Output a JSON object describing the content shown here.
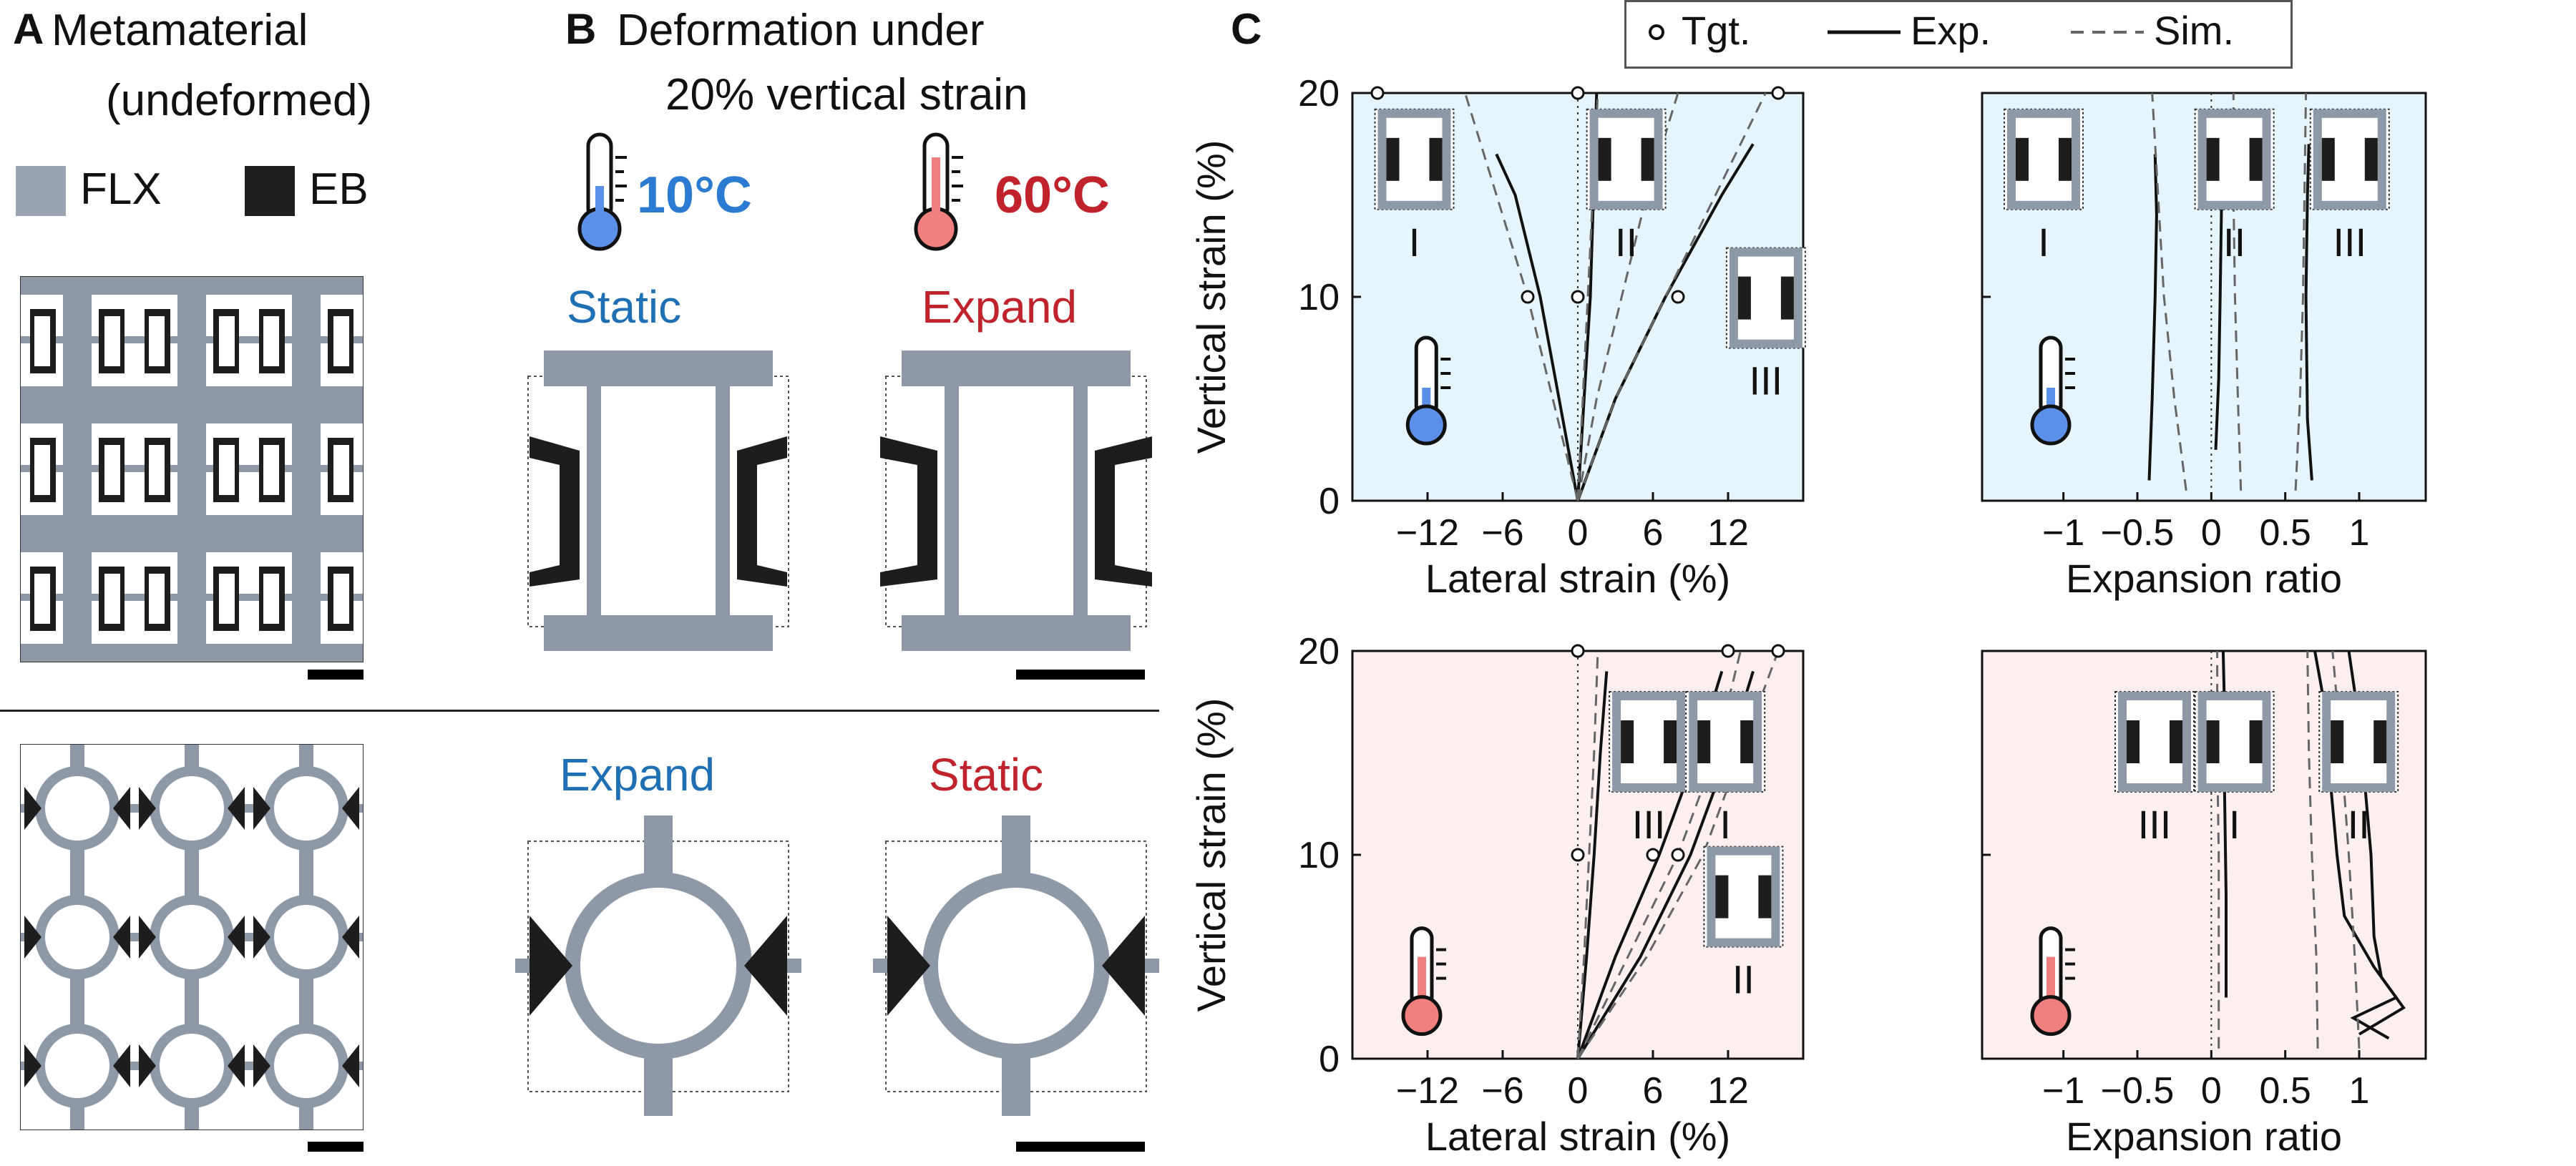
{
  "panel_a": {
    "letter": "A",
    "title_line1": "Metamaterial",
    "title_line2": "(undeformed)",
    "legend": [
      {
        "label": "FLX",
        "color": "#9aa5b3"
      },
      {
        "label": "EB",
        "color": "#1f1f1f"
      }
    ]
  },
  "panel_b": {
    "letter": "B",
    "title_line1": "Deformation under",
    "title_line2": "20% vertical strain",
    "temp_cold": "10°C",
    "temp_hot": "60°C",
    "top_row": [
      "Static",
      "Expand"
    ],
    "bottom_row": [
      "Expand",
      "Static"
    ]
  },
  "panel_c": {
    "letter": "C",
    "legend": [
      {
        "label": "Tgt.",
        "style": "circle"
      },
      {
        "label": "Exp.",
        "style": "solid"
      },
      {
        "label": "Sim.",
        "style": "dashed"
      }
    ],
    "colors": {
      "cold_bg": "#e6f4fb",
      "hot_bg": "#fcefef"
    }
  },
  "chart_data": [
    {
      "type": "line",
      "id": "cold-lateral",
      "xlabel": "Lateral strain (%)",
      "ylabel": "Vertical strain (%)",
      "xlim": [
        -18,
        18
      ],
      "ylim": [
        0,
        20
      ],
      "xticks": [
        "-12",
        "-6",
        "0",
        "6",
        "12"
      ],
      "yticks": [
        "0",
        "10",
        "20"
      ],
      "targets": [
        [
          -16,
          20
        ],
        [
          -4,
          10
        ],
        [
          0,
          20
        ],
        [
          0,
          10
        ],
        [
          8,
          10
        ],
        [
          16,
          20
        ]
      ],
      "series": [
        {
          "style": "solid",
          "points": [
            [
              0,
              0
            ],
            [
              -1.5,
              5
            ],
            [
              -3,
              10
            ],
            [
              -5,
              15
            ],
            [
              -6.5,
              17
            ]
          ]
        },
        {
          "style": "solid",
          "points": [
            [
              0,
              0
            ],
            [
              0.5,
              5
            ],
            [
              1,
              10
            ],
            [
              1.5,
              20
            ]
          ]
        },
        {
          "style": "solid",
          "points": [
            [
              0,
              0
            ],
            [
              3,
              5
            ],
            [
              7,
              10
            ],
            [
              11.5,
              15
            ],
            [
              14,
              17.5
            ]
          ]
        },
        {
          "style": "dashed",
          "points": [
            [
              0,
              0
            ],
            [
              -2,
              5
            ],
            [
              -4,
              10
            ],
            [
              -6.5,
              15
            ],
            [
              -9,
              20
            ]
          ]
        },
        {
          "style": "dashed",
          "points": [
            [
              0,
              0
            ],
            [
              0.4,
              5
            ],
            [
              0.8,
              10
            ],
            [
              1.2,
              15
            ],
            [
              1.6,
              20
            ]
          ]
        },
        {
          "style": "dashed",
          "points": [
            [
              0,
              0
            ],
            [
              1.5,
              5
            ],
            [
              3.5,
              10
            ],
            [
              5.5,
              15
            ],
            [
              8,
              20
            ]
          ]
        },
        {
          "style": "dashed",
          "points": [
            [
              0,
              0
            ],
            [
              3,
              5
            ],
            [
              7,
              10
            ],
            [
              11,
              15
            ],
            [
              15,
              20
            ]
          ]
        }
      ],
      "insets": [
        "I",
        "II",
        "III"
      ]
    },
    {
      "type": "line",
      "id": "cold-expansion",
      "xlabel": "Expansion ratio",
      "ylabel": "",
      "xlim": [
        -1.55,
        1.45
      ],
      "ylim": [
        0,
        20
      ],
      "xticks": [
        "-1",
        "-0.5",
        "0",
        "0.5",
        "1"
      ],
      "yticks": [
        "0",
        "10",
        "20"
      ],
      "series": [
        {
          "style": "solid",
          "points": [
            [
              -0.42,
              1
            ],
            [
              -0.4,
              5
            ],
            [
              -0.38,
              10
            ],
            [
              -0.37,
              14
            ],
            [
              -0.38,
              17
            ]
          ]
        },
        {
          "style": "solid",
          "points": [
            [
              0.03,
              2.5
            ],
            [
              0.05,
              6
            ],
            [
              0.06,
              10
            ],
            [
              0.07,
              15
            ],
            [
              0.08,
              18
            ]
          ]
        },
        {
          "style": "solid",
          "points": [
            [
              0.68,
              1
            ],
            [
              0.65,
              4
            ],
            [
              0.64,
              10
            ],
            [
              0.65,
              15
            ],
            [
              0.66,
              17.5
            ]
          ]
        },
        {
          "style": "dashed",
          "points": [
            [
              -0.17,
              0.5
            ],
            [
              -0.25,
              5
            ],
            [
              -0.32,
              10
            ],
            [
              -0.36,
              15
            ],
            [
              -0.4,
              20
            ]
          ]
        },
        {
          "style": "dashed",
          "points": [
            [
              0.2,
              0.5
            ],
            [
              0.18,
              5
            ],
            [
              0.16,
              10
            ],
            [
              0.15,
              15
            ],
            [
              0.15,
              20
            ]
          ]
        },
        {
          "style": "dashed",
          "points": [
            [
              0.57,
              0.5
            ],
            [
              0.6,
              5
            ],
            [
              0.62,
              10
            ],
            [
              0.63,
              15
            ],
            [
              0.64,
              20
            ]
          ]
        }
      ],
      "insets": [
        "I",
        "II",
        "III"
      ]
    },
    {
      "type": "line",
      "id": "hot-lateral",
      "xlabel": "Lateral strain (%)",
      "ylabel": "Vertical strain (%)",
      "xlim": [
        -18,
        18
      ],
      "ylim": [
        0,
        20
      ],
      "xticks": [
        "-12",
        "-6",
        "0",
        "6",
        "12"
      ],
      "yticks": [
        "0",
        "10",
        "20"
      ],
      "targets": [
        [
          0,
          20
        ],
        [
          0,
          10
        ],
        [
          6,
          10
        ],
        [
          8,
          10
        ],
        [
          12,
          20
        ],
        [
          16,
          20
        ]
      ],
      "series": [
        {
          "style": "solid",
          "points": [
            [
              0,
              0
            ],
            [
              0.7,
              5
            ],
            [
              1.3,
              10
            ],
            [
              1.8,
              15
            ],
            [
              2.3,
              19
            ]
          ]
        },
        {
          "style": "solid",
          "points": [
            [
              0,
              0
            ],
            [
              3,
              5
            ],
            [
              6.5,
              10
            ],
            [
              9.5,
              15
            ],
            [
              11.5,
              19
            ]
          ]
        },
        {
          "style": "solid",
          "points": [
            [
              0,
              0
            ],
            [
              5,
              5
            ],
            [
              9,
              10
            ],
            [
              12,
              15
            ],
            [
              14,
              19
            ]
          ]
        },
        {
          "style": "dashed",
          "points": [
            [
              0,
              0
            ],
            [
              0.5,
              5
            ],
            [
              0.9,
              10
            ],
            [
              1.3,
              15
            ],
            [
              1.6,
              20
            ]
          ]
        },
        {
          "style": "dashed",
          "points": [
            [
              0,
              0
            ],
            [
              4,
              5
            ],
            [
              8,
              10
            ],
            [
              11,
              15
            ],
            [
              13,
              20
            ]
          ]
        },
        {
          "style": "dashed",
          "points": [
            [
              0,
              0
            ],
            [
              5.5,
              5
            ],
            [
              10,
              10
            ],
            [
              13,
              15
            ],
            [
              16,
              20
            ]
          ]
        }
      ],
      "insets": [
        "III",
        "I",
        "II"
      ]
    },
    {
      "type": "line",
      "id": "hot-expansion",
      "xlabel": "Expansion ratio",
      "ylabel": "",
      "xlim": [
        -1.55,
        1.45
      ],
      "ylim": [
        0,
        20
      ],
      "xticks": [
        "-1",
        "-0.5",
        "0",
        "0.5",
        "1"
      ],
      "yticks": [
        "0",
        "10",
        "20"
      ],
      "series": [
        {
          "style": "solid",
          "points": [
            [
              0.1,
              3
            ],
            [
              0.1,
              8
            ],
            [
              0.09,
              13
            ],
            [
              0.09,
              17
            ],
            [
              0.08,
              20
            ]
          ]
        },
        {
          "style": "solid",
          "points": [
            [
              1.2,
              1
            ],
            [
              0.96,
              2
            ],
            [
              1.25,
              3
            ],
            [
              1.1,
              4.5
            ],
            [
              0.9,
              7
            ],
            [
              0.85,
              10
            ],
            [
              0.8,
              14
            ],
            [
              0.75,
              18
            ],
            [
              0.7,
              20
            ]
          ]
        },
        {
          "style": "solid",
          "points": [
            [
              1.0,
              1.2
            ],
            [
              1.3,
              2.5
            ],
            [
              1.15,
              4
            ],
            [
              1.1,
              6
            ],
            [
              1.08,
              10
            ],
            [
              1.02,
              15
            ],
            [
              0.97,
              18
            ],
            [
              0.93,
              20
            ]
          ]
        },
        {
          "style": "dashed",
          "points": [
            [
              0.05,
              0.5
            ],
            [
              0.05,
              5
            ],
            [
              0.05,
              10
            ],
            [
              0.04,
              15
            ],
            [
              0.04,
              20
            ]
          ]
        },
        {
          "style": "dashed",
          "points": [
            [
              0.72,
              0.5
            ],
            [
              0.71,
              5
            ],
            [
              0.68,
              10
            ],
            [
              0.66,
              15
            ],
            [
              0.65,
              20
            ]
          ]
        },
        {
          "style": "dashed",
          "points": [
            [
              1.0,
              0.5
            ],
            [
              0.97,
              5
            ],
            [
              0.93,
              10
            ],
            [
              0.88,
              15
            ],
            [
              0.82,
              20
            ]
          ]
        }
      ],
      "insets": [
        "III",
        "I",
        "II"
      ]
    }
  ]
}
